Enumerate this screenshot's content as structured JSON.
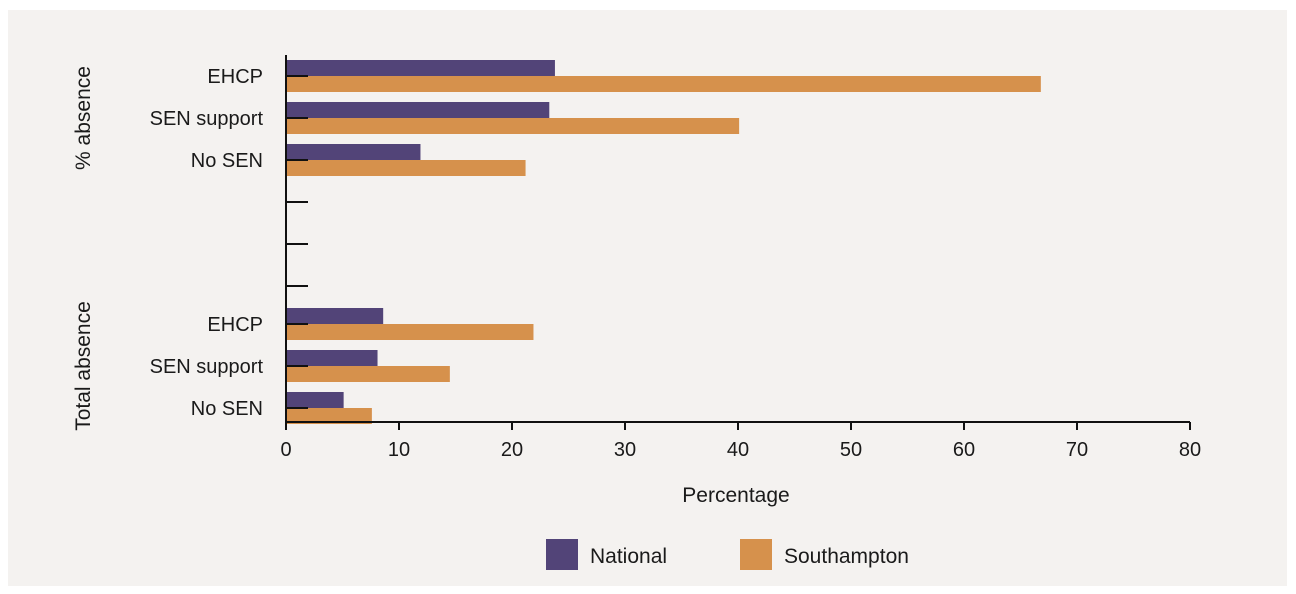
{
  "chart_data": {
    "type": "bar",
    "orientation": "horizontal",
    "xlabel": "Percentage",
    "xlim": [
      0,
      80
    ],
    "xticks": [
      0,
      10,
      20,
      30,
      40,
      50,
      60,
      70,
      80
    ],
    "groups": [
      {
        "label": "% absence",
        "categories": [
          "EHCP",
          "SEN support",
          "No SEN"
        ]
      },
      {
        "label": "Total absence",
        "categories": [
          "EHCP",
          "SEN support",
          "No SEN"
        ]
      }
    ],
    "series": [
      {
        "name": "National",
        "color": "#524478",
        "values": [
          [
            23.8,
            23.3,
            11.9
          ],
          [
            8.6,
            8.1,
            5.1
          ]
        ]
      },
      {
        "name": "Southampton",
        "color": "#d6914c",
        "values": [
          [
            66.8,
            40.1,
            21.2
          ],
          [
            21.9,
            14.5,
            7.6
          ]
        ]
      }
    ],
    "legend_position": "bottom",
    "grid": false
  }
}
